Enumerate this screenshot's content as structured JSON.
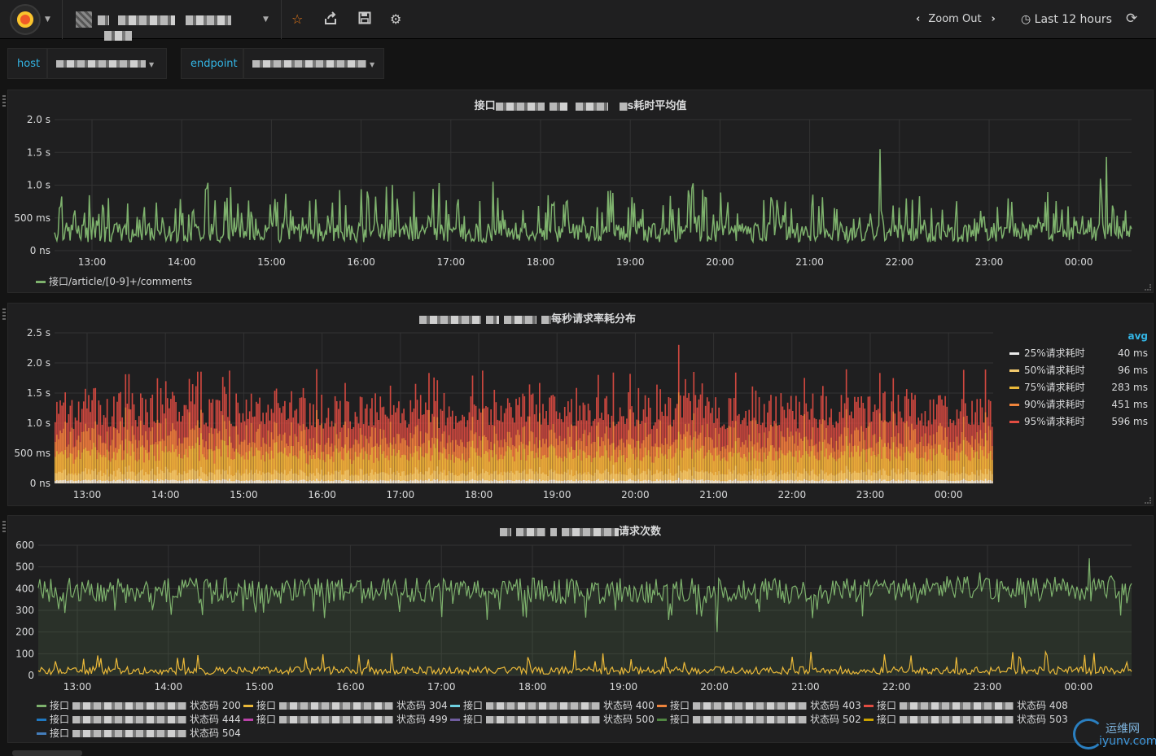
{
  "topbar": {
    "zoom_label": "Zoom Out",
    "range_label": "Last 12 hours",
    "icons": [
      "grafana-logo",
      "dashboard-icon",
      "star-icon",
      "share-icon",
      "save-icon",
      "gear-icon",
      "chevron-left-icon",
      "chevron-right-icon",
      "clock-icon",
      "refresh-icon"
    ]
  },
  "variables": [
    {
      "label": "host"
    },
    {
      "label": "endpoint"
    }
  ],
  "panels": {
    "p1": {
      "title_suffix": "s耗时平均值",
      "legend": "接口/article/[0-9]+/comments"
    },
    "p2": {
      "title_suffix": "每秒请求率耗分布",
      "legend_header": "avg",
      "legend": [
        {
          "name": "25%请求耗时",
          "value": "40 ms",
          "color": "#eaeaea"
        },
        {
          "name": "50%请求耗时",
          "value": "96 ms",
          "color": "#f2c96d"
        },
        {
          "name": "75%请求耗时",
          "value": "283 ms",
          "color": "#eab839"
        },
        {
          "name": "90%请求耗时",
          "value": "451 ms",
          "color": "#ef843c"
        },
        {
          "name": "95%请求耗时",
          "value": "596 ms",
          "color": "#e24d42"
        }
      ]
    },
    "p3": {
      "title_suffix": "请求次数",
      "legend": [
        {
          "prefix": "接口",
          "suffix": "状态码 200",
          "color": "#7eb26d"
        },
        {
          "prefix": "接口",
          "suffix": "状态码 304",
          "color": "#eab839"
        },
        {
          "prefix": "接口",
          "suffix": "状态码 400",
          "color": "#6ed0e0"
        },
        {
          "prefix": "接口",
          "suffix": "状态码 403",
          "color": "#ef843c"
        },
        {
          "prefix": "接口",
          "suffix": "状态码 408",
          "color": "#e24d42"
        },
        {
          "prefix": "接口",
          "suffix": "状态码 444",
          "color": "#1f78c1"
        },
        {
          "prefix": "接口",
          "suffix": "状态码 499",
          "color": "#ba43a9"
        },
        {
          "prefix": "接口",
          "suffix": "状态码 500",
          "color": "#705da0"
        },
        {
          "prefix": "接口",
          "suffix": "状态码 502",
          "color": "#508642"
        },
        {
          "prefix": "接口",
          "suffix": "状态码 503",
          "color": "#cca300"
        },
        {
          "prefix": "接口",
          "suffix": "状态码 504",
          "color": "#447ebc"
        }
      ]
    }
  },
  "watermark": {
    "line1": "运维网",
    "line2": "iyunv.com"
  },
  "chart_data": [
    {
      "type": "line",
      "yticks": [
        "2.0 s",
        "1.5 s",
        "1.0 s",
        "500 ms",
        "0 ns"
      ],
      "xticks": [
        "13:00",
        "14:00",
        "15:00",
        "16:00",
        "17:00",
        "18:00",
        "19:00",
        "20:00",
        "21:00",
        "22:00",
        "23:00",
        "00:00"
      ],
      "ylim": [
        0,
        2000
      ],
      "series": [
        {
          "name": "接口/article/[0-9]+/comments",
          "color": "#7eb26d"
        }
      ],
      "note": "Average latency ~300ms with frequent spikes up to ~1000ms and peaks at 1550ms near 20:35 and 1430ms near 00:30"
    },
    {
      "type": "bar",
      "yticks": [
        "2.5 s",
        "2.0 s",
        "1.5 s",
        "1.0 s",
        "500 ms",
        "0 ns"
      ],
      "xticks": [
        "13:00",
        "14:00",
        "15:00",
        "16:00",
        "17:00",
        "18:00",
        "19:00",
        "20:00",
        "21:00",
        "22:00",
        "23:00",
        "00:00"
      ],
      "ylim": [
        0,
        2500
      ],
      "stacked": true,
      "series": [
        {
          "name": "25%请求耗时",
          "avg_ms": 40
        },
        {
          "name": "50%请求耗时",
          "avg_ms": 96
        },
        {
          "name": "75%请求耗时",
          "avg_ms": 283
        },
        {
          "name": "90%请求耗时",
          "avg_ms": 451
        },
        {
          "name": "95%请求耗时",
          "avg_ms": 596
        }
      ]
    },
    {
      "type": "area",
      "yticks": [
        "600",
        "500",
        "400",
        "300",
        "200",
        "100",
        "0"
      ],
      "xticks": [
        "13:00",
        "14:00",
        "15:00",
        "16:00",
        "17:00",
        "18:00",
        "19:00",
        "20:00",
        "21:00",
        "22:00",
        "23:00",
        "00:00"
      ],
      "ylim": [
        0,
        600
      ],
      "series": [
        {
          "name": "状态码 200",
          "approx_level": 400,
          "color": "#7eb26d"
        },
        {
          "name": "状态码 304",
          "approx_level": 20,
          "color": "#eab839"
        }
      ]
    }
  ]
}
